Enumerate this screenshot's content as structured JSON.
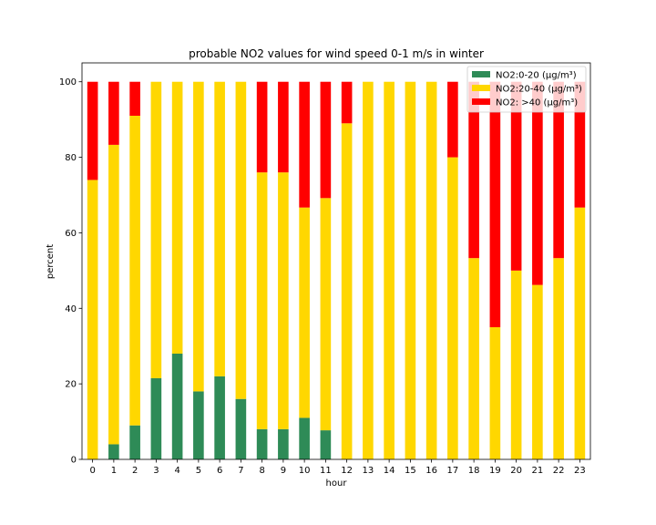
{
  "chart_data": {
    "type": "bar",
    "stacked": true,
    "title": "probable NO2 values for wind speed 0-1 m/s in winter",
    "xlabel": "hour",
    "ylabel": "percent",
    "ylim": [
      0,
      105
    ],
    "yticks": [
      0,
      20,
      40,
      60,
      80,
      100
    ],
    "grid": false,
    "legend_position": "top-right",
    "categories": [
      "0",
      "1",
      "2",
      "3",
      "4",
      "5",
      "6",
      "7",
      "8",
      "9",
      "10",
      "11",
      "12",
      "13",
      "14",
      "15",
      "16",
      "17",
      "18",
      "19",
      "20",
      "21",
      "22",
      "23"
    ],
    "series": [
      {
        "name": "NO2:0-20 (µg/m³)",
        "color": "#2e8b57",
        "values": [
          0,
          4,
          9,
          21.5,
          28,
          18,
          22,
          16,
          8,
          8,
          11,
          7.7,
          0,
          0,
          0,
          0,
          0,
          0,
          0,
          0,
          0,
          0,
          0,
          0
        ]
      },
      {
        "name": "NO2:20-40 (µg/m³)",
        "color": "#ffd700",
        "values": [
          74,
          79.3,
          82,
          78.5,
          72,
          82,
          78,
          84,
          68,
          68,
          55.7,
          61.5,
          89,
          100,
          100,
          100,
          100,
          80,
          53.3,
          35,
          50,
          46.2,
          53.3,
          66.7
        ]
      },
      {
        "name": "NO2: >40 (µg/m³)",
        "color": "#ff0000",
        "values": [
          26,
          16.7,
          9,
          0,
          0,
          0,
          0,
          0,
          24,
          24,
          33.3,
          30.8,
          11,
          0,
          0,
          0,
          0,
          20,
          46.7,
          65,
          50,
          53.8,
          46.7,
          33.3
        ]
      }
    ]
  }
}
